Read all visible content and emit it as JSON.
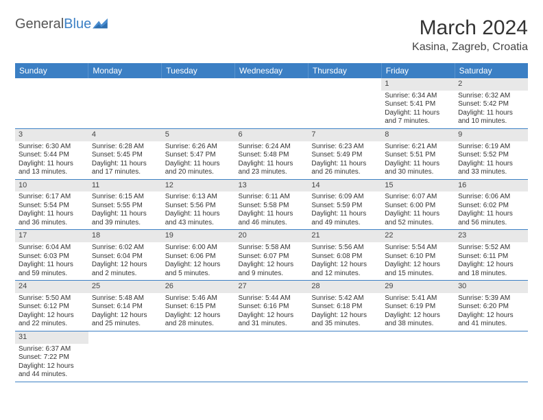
{
  "brand": {
    "name_a": "General",
    "name_b": "Blue"
  },
  "title": "March 2024",
  "location": "Kasina, Zagreb, Croatia",
  "weekday_headers": [
    "Sunday",
    "Monday",
    "Tuesday",
    "Wednesday",
    "Thursday",
    "Friday",
    "Saturday"
  ],
  "colors": {
    "header_bg": "#3b7fc4",
    "header_text": "#ffffff",
    "daynum_bg": "#e8e8e8",
    "row_border": "#3b7fc4"
  },
  "font": {
    "title_size_pt": 22,
    "location_size_pt": 12,
    "header_size_pt": 9,
    "daynum_size_pt": 8,
    "body_size_pt": 7.5
  },
  "grid": {
    "rows": 6,
    "cols": 7,
    "first_weekday_index_of_day1": 5
  },
  "days": [
    {
      "n": 1,
      "sunrise": "6:34 AM",
      "sunset": "5:41 PM",
      "daylight": "11 hours and 7 minutes."
    },
    {
      "n": 2,
      "sunrise": "6:32 AM",
      "sunset": "5:42 PM",
      "daylight": "11 hours and 10 minutes."
    },
    {
      "n": 3,
      "sunrise": "6:30 AM",
      "sunset": "5:44 PM",
      "daylight": "11 hours and 13 minutes."
    },
    {
      "n": 4,
      "sunrise": "6:28 AM",
      "sunset": "5:45 PM",
      "daylight": "11 hours and 17 minutes."
    },
    {
      "n": 5,
      "sunrise": "6:26 AM",
      "sunset": "5:47 PM",
      "daylight": "11 hours and 20 minutes."
    },
    {
      "n": 6,
      "sunrise": "6:24 AM",
      "sunset": "5:48 PM",
      "daylight": "11 hours and 23 minutes."
    },
    {
      "n": 7,
      "sunrise": "6:23 AM",
      "sunset": "5:49 PM",
      "daylight": "11 hours and 26 minutes."
    },
    {
      "n": 8,
      "sunrise": "6:21 AM",
      "sunset": "5:51 PM",
      "daylight": "11 hours and 30 minutes."
    },
    {
      "n": 9,
      "sunrise": "6:19 AM",
      "sunset": "5:52 PM",
      "daylight": "11 hours and 33 minutes."
    },
    {
      "n": 10,
      "sunrise": "6:17 AM",
      "sunset": "5:54 PM",
      "daylight": "11 hours and 36 minutes."
    },
    {
      "n": 11,
      "sunrise": "6:15 AM",
      "sunset": "5:55 PM",
      "daylight": "11 hours and 39 minutes."
    },
    {
      "n": 12,
      "sunrise": "6:13 AM",
      "sunset": "5:56 PM",
      "daylight": "11 hours and 43 minutes."
    },
    {
      "n": 13,
      "sunrise": "6:11 AM",
      "sunset": "5:58 PM",
      "daylight": "11 hours and 46 minutes."
    },
    {
      "n": 14,
      "sunrise": "6:09 AM",
      "sunset": "5:59 PM",
      "daylight": "11 hours and 49 minutes."
    },
    {
      "n": 15,
      "sunrise": "6:07 AM",
      "sunset": "6:00 PM",
      "daylight": "11 hours and 52 minutes."
    },
    {
      "n": 16,
      "sunrise": "6:06 AM",
      "sunset": "6:02 PM",
      "daylight": "11 hours and 56 minutes."
    },
    {
      "n": 17,
      "sunrise": "6:04 AM",
      "sunset": "6:03 PM",
      "daylight": "11 hours and 59 minutes."
    },
    {
      "n": 18,
      "sunrise": "6:02 AM",
      "sunset": "6:04 PM",
      "daylight": "12 hours and 2 minutes."
    },
    {
      "n": 19,
      "sunrise": "6:00 AM",
      "sunset": "6:06 PM",
      "daylight": "12 hours and 5 minutes."
    },
    {
      "n": 20,
      "sunrise": "5:58 AM",
      "sunset": "6:07 PM",
      "daylight": "12 hours and 9 minutes."
    },
    {
      "n": 21,
      "sunrise": "5:56 AM",
      "sunset": "6:08 PM",
      "daylight": "12 hours and 12 minutes."
    },
    {
      "n": 22,
      "sunrise": "5:54 AM",
      "sunset": "6:10 PM",
      "daylight": "12 hours and 15 minutes."
    },
    {
      "n": 23,
      "sunrise": "5:52 AM",
      "sunset": "6:11 PM",
      "daylight": "12 hours and 18 minutes."
    },
    {
      "n": 24,
      "sunrise": "5:50 AM",
      "sunset": "6:12 PM",
      "daylight": "12 hours and 22 minutes."
    },
    {
      "n": 25,
      "sunrise": "5:48 AM",
      "sunset": "6:14 PM",
      "daylight": "12 hours and 25 minutes."
    },
    {
      "n": 26,
      "sunrise": "5:46 AM",
      "sunset": "6:15 PM",
      "daylight": "12 hours and 28 minutes."
    },
    {
      "n": 27,
      "sunrise": "5:44 AM",
      "sunset": "6:16 PM",
      "daylight": "12 hours and 31 minutes."
    },
    {
      "n": 28,
      "sunrise": "5:42 AM",
      "sunset": "6:18 PM",
      "daylight": "12 hours and 35 minutes."
    },
    {
      "n": 29,
      "sunrise": "5:41 AM",
      "sunset": "6:19 PM",
      "daylight": "12 hours and 38 minutes."
    },
    {
      "n": 30,
      "sunrise": "5:39 AM",
      "sunset": "6:20 PM",
      "daylight": "12 hours and 41 minutes."
    },
    {
      "n": 31,
      "sunrise": "6:37 AM",
      "sunset": "7:22 PM",
      "daylight": "12 hours and 44 minutes."
    }
  ],
  "labels": {
    "sunrise": "Sunrise:",
    "sunset": "Sunset:",
    "daylight": "Daylight:"
  }
}
